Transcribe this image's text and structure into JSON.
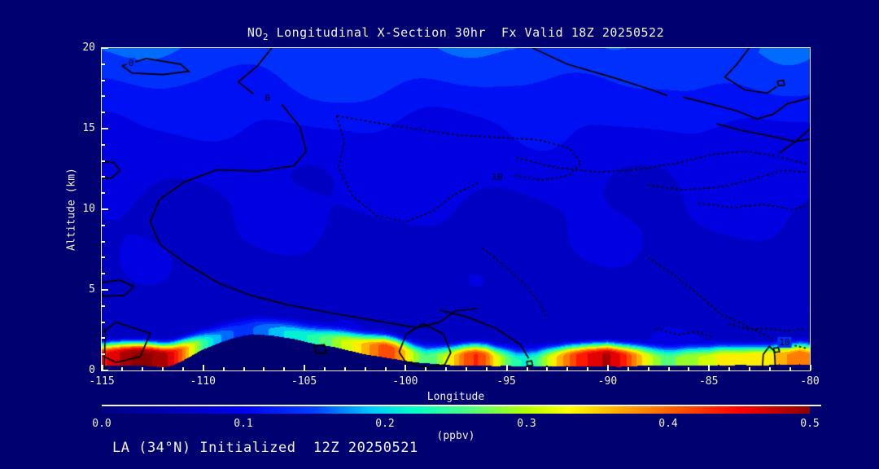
{
  "page": {
    "background": "#000070",
    "text_color": "#f2f2e2"
  },
  "title": {
    "prefix": "NO",
    "subscript": "2",
    "rest": " Longitudinal X-Section 30hr  Fx Valid 18Z 20250522"
  },
  "footer": {
    "text": "LA (34°N) Initialized  12Z 20250521"
  },
  "chart_data": {
    "type": "heatmap",
    "title": "NO2 Longitudinal X-Section 30hr Fx Valid 18Z 20250522",
    "xlabel": "Longitude",
    "ylabel": "Altitude (km)",
    "units_label": "(ppbv)",
    "xlim": [
      -115,
      -80
    ],
    "ylim": [
      0,
      20
    ],
    "grid": false,
    "x_ticks_major": [
      -115,
      -110,
      -105,
      -100,
      -95,
      -90,
      -85,
      -80
    ],
    "x_tick_labels": [
      "-115",
      "-110",
      "-105",
      "-100",
      "-95",
      "-90",
      "-85",
      "-80"
    ],
    "x_tick_minor_step": 1,
    "y_ticks_major": [
      0,
      5,
      10,
      15,
      20
    ],
    "y_tick_labels": [
      "0",
      "5",
      "10",
      "15",
      "20"
    ],
    "y_tick_minor_step": 1,
    "colorbar": {
      "min": 0.0,
      "max": 0.5,
      "tick_values": [
        0.0,
        0.1,
        0.2,
        0.3,
        0.4,
        0.5
      ],
      "tick_labels": [
        "0.0",
        "0.1",
        "0.2",
        "0.3",
        "0.4",
        "0.5"
      ],
      "stops": [
        {
          "t": 0.0,
          "color": "#000082"
        },
        {
          "t": 0.1,
          "color": "#0000B4"
        },
        {
          "t": 0.2,
          "color": "#0000F0"
        },
        {
          "t": 0.3,
          "color": "#0040FF"
        },
        {
          "t": 0.38,
          "color": "#00C8FF"
        },
        {
          "t": 0.44,
          "color": "#00FFC8"
        },
        {
          "t": 0.52,
          "color": "#50FF80"
        },
        {
          "t": 0.6,
          "color": "#B4FF00"
        },
        {
          "t": 0.66,
          "color": "#FFFF00"
        },
        {
          "t": 0.74,
          "color": "#FFA000"
        },
        {
          "t": 0.82,
          "color": "#FF5000"
        },
        {
          "t": 0.9,
          "color": "#FF0000"
        },
        {
          "t": 1.0,
          "color": "#8C0000"
        }
      ]
    },
    "field": {
      "lon_start": -115,
      "lon_step": 0.5,
      "surface_ppbv": [
        0.44,
        0.46,
        0.48,
        0.5,
        0.5,
        0.5,
        0.49,
        0.46,
        0.4,
        0.32,
        0.25,
        0.2,
        0.17,
        0.15,
        0.14,
        0.15,
        0.17,
        0.18,
        0.2,
        0.21,
        0.22,
        0.24,
        0.26,
        0.28,
        0.31,
        0.33,
        0.36,
        0.39,
        0.42,
        0.4,
        0.35,
        0.29,
        0.25,
        0.27,
        0.31,
        0.36,
        0.41,
        0.43,
        0.4,
        0.33,
        0.27,
        0.23,
        0.22,
        0.25,
        0.3,
        0.35,
        0.39,
        0.43,
        0.45,
        0.47,
        0.48,
        0.46,
        0.42,
        0.37,
        0.32,
        0.28,
        0.26,
        0.28,
        0.3,
        0.3,
        0.31,
        0.33,
        0.34,
        0.33,
        0.34,
        0.35,
        0.34,
        0.36,
        0.38,
        0.4,
        0.38
      ],
      "terrain_km": [
        0.3,
        0.32,
        0.32,
        0.3,
        0.3,
        0.25,
        0.2,
        0.3,
        0.6,
        0.95,
        1.3,
        1.55,
        1.8,
        2.0,
        2.15,
        2.25,
        2.2,
        2.15,
        2.05,
        1.95,
        1.8,
        1.65,
        1.55,
        1.45,
        1.3,
        1.15,
        1.0,
        0.9,
        0.8,
        0.7,
        0.6,
        0.5,
        0.45,
        0.4,
        0.35,
        0.3,
        0.3,
        0.28,
        0.3,
        0.26,
        0.3,
        0.25,
        0.28,
        0.24,
        0.28,
        0.25,
        0.28,
        0.24,
        0.26,
        0.24,
        0.26,
        0.22,
        0.24,
        0.28,
        0.3,
        0.32,
        0.3,
        0.28,
        0.3,
        0.32,
        0.3,
        0.33,
        0.3,
        0.35,
        0.32,
        0.3,
        0.33,
        0.38,
        0.35,
        0.38,
        0.35
      ],
      "alt_levels_km": [
        0,
        1,
        2,
        3,
        4,
        5,
        6,
        7,
        8,
        9,
        10,
        11,
        12,
        13,
        14,
        15,
        16,
        17,
        18,
        19,
        20
      ],
      "background_ppbv": [
        0.07,
        0.07,
        0.068,
        0.066,
        0.065,
        0.065,
        0.067,
        0.069,
        0.071,
        0.073,
        0.075,
        0.078,
        0.081,
        0.085,
        0.09,
        0.098,
        0.108,
        0.118,
        0.128,
        0.138,
        0.148
      ],
      "mixing": {
        "base_km": 0.35,
        "gain": 1.6,
        "threshold_ppbv": 0.22,
        "rim_km": 1.1
      },
      "band_interval_ppbv": 0.025,
      "terrain_color": "#000070"
    },
    "contours": {
      "solid": [
        [
          [
            -114,
            18.9
          ],
          [
            -112.8,
            19.35
          ],
          [
            -111.1,
            19.0
          ],
          [
            -110.7,
            18.55
          ],
          [
            -112,
            18.35
          ],
          [
            -113.5,
            18.45
          ],
          [
            -114,
            18.9
          ]
        ],
        [
          [
            -106.6,
            20
          ],
          [
            -107.3,
            18.9
          ],
          [
            -108.25,
            17.9
          ],
          [
            -107.5,
            17.15
          ]
        ],
        [
          [
            -106.1,
            16.5
          ],
          [
            -105.2,
            15.1
          ],
          [
            -104.9,
            13.6
          ],
          [
            -105.5,
            12.7
          ],
          [
            -107.3,
            12.35
          ],
          [
            -109.3,
            12.45
          ],
          [
            -110.9,
            11.7
          ],
          [
            -112.15,
            10.6
          ],
          [
            -112.6,
            9.2
          ],
          [
            -112.1,
            7.8
          ],
          [
            -110.8,
            6.6
          ],
          [
            -109.2,
            5.4
          ],
          [
            -107.6,
            4.65
          ],
          [
            -105.9,
            4.1
          ],
          [
            -103.8,
            3.6
          ],
          [
            -101.5,
            3.1
          ],
          [
            -99.4,
            2.65
          ],
          [
            -98.3,
            3.0
          ],
          [
            -97.5,
            3.7
          ],
          [
            -96.4,
            3.85
          ]
        ],
        [
          [
            -115,
            12.95
          ],
          [
            -114.4,
            12.9
          ],
          [
            -114.1,
            12.4
          ],
          [
            -114.5,
            11.95
          ],
          [
            -115,
            11.9
          ]
        ],
        [
          [
            -115,
            5.45
          ],
          [
            -114.1,
            5.6
          ],
          [
            -113.4,
            5.2
          ],
          [
            -113.9,
            4.65
          ],
          [
            -114.9,
            4.6
          ],
          [
            -115.2,
            5.0
          ]
        ],
        [
          [
            -114.9,
            2.4
          ],
          [
            -114.3,
            3.0
          ],
          [
            -112.6,
            2.3
          ],
          [
            -113.1,
            0.85
          ],
          [
            -114.3,
            0.5
          ],
          [
            -114.95,
            0.9
          ]
        ],
        [
          [
            -114.82,
            2.6
          ],
          [
            -114.88,
            0.05
          ]
        ],
        [
          [
            -100.3,
            1.15
          ],
          [
            -99.95,
            2.25
          ],
          [
            -99.1,
            2.9
          ],
          [
            -98.1,
            2.25
          ],
          [
            -97.75,
            1.1
          ],
          [
            -98.05,
            0.35
          ],
          [
            -99.0,
            0.18
          ],
          [
            -100.0,
            0.55
          ],
          [
            -100.3,
            1.15
          ]
        ],
        [
          [
            -98.3,
            3.75
          ],
          [
            -96.9,
            3.3
          ],
          [
            -95.5,
            2.6
          ],
          [
            -94.3,
            1.6
          ],
          [
            -93.9,
            0.75
          ]
        ],
        [
          [
            -94.0,
            0.55
          ],
          [
            -93.75,
            0.6
          ],
          [
            -93.7,
            0.32
          ],
          [
            -93.95,
            0.28
          ],
          [
            -94.0,
            0.55
          ]
        ],
        [
          [
            -104.5,
            1.55
          ],
          [
            -104.0,
            1.6
          ],
          [
            -103.9,
            1.1
          ],
          [
            -104.4,
            1.05
          ],
          [
            -104.5,
            1.55
          ]
        ],
        [
          [
            -82.35,
            0.05
          ],
          [
            -82.3,
            1.0
          ],
          [
            -82.0,
            1.5
          ],
          [
            -81.75,
            1.2
          ],
          [
            -81.7,
            0.05
          ]
        ],
        [
          [
            -81.8,
            1.38
          ],
          [
            -81.55,
            1.42
          ],
          [
            -81.5,
            1.16
          ],
          [
            -81.75,
            1.12
          ],
          [
            -81.8,
            1.38
          ]
        ],
        [
          [
            -83.0,
            20
          ],
          [
            -83.6,
            19.0
          ],
          [
            -84.2,
            18.2
          ],
          [
            -83.2,
            17.4
          ],
          [
            -82.1,
            17.2
          ],
          [
            -81.65,
            17.6
          ]
        ],
        [
          [
            -81.6,
            17.95
          ],
          [
            -81.3,
            18.0
          ],
          [
            -81.25,
            17.7
          ],
          [
            -81.55,
            17.66
          ],
          [
            -81.6,
            17.95
          ]
        ],
        [
          [
            -93.7,
            20
          ],
          [
            -92.0,
            19.0
          ],
          [
            -89.8,
            18.2
          ],
          [
            -87.8,
            17.4
          ],
          [
            -87.05,
            17.05
          ]
        ],
        [
          [
            -86.25,
            16.95
          ],
          [
            -84.8,
            16.5
          ],
          [
            -83.6,
            16.1
          ],
          [
            -82.6,
            15.6
          ],
          [
            -81.8,
            15.9
          ],
          [
            -81.1,
            16.55
          ],
          [
            -80.0,
            16.9
          ]
        ],
        [
          [
            -84.6,
            15.3
          ],
          [
            -83.4,
            14.9
          ],
          [
            -82.0,
            14.55
          ],
          [
            -80.7,
            14.2
          ],
          [
            -80.0,
            14.35
          ]
        ],
        [
          [
            -81.5,
            13.5
          ],
          [
            -80.7,
            14.2
          ],
          [
            -80.0,
            15.0
          ]
        ]
      ],
      "dotted": [
        [
          [
            -103.4,
            15.8
          ],
          [
            -103.0,
            14.2
          ],
          [
            -103.3,
            12.6
          ],
          [
            -102.6,
            10.8
          ],
          [
            -101.4,
            9.6
          ],
          [
            -100.0,
            9.2
          ],
          [
            -98.6,
            9.9
          ],
          [
            -97.6,
            10.9
          ],
          [
            -96.3,
            11.7
          ]
        ],
        [
          [
            -94.6,
            12.1
          ],
          [
            -93.2,
            11.8
          ],
          [
            -91.9,
            12.1
          ],
          [
            -91.3,
            12.9
          ],
          [
            -91.9,
            13.8
          ],
          [
            -93.4,
            14.3
          ],
          [
            -95.3,
            14.45
          ],
          [
            -97.4,
            14.6
          ],
          [
            -99.6,
            15.0
          ],
          [
            -101.6,
            15.4
          ],
          [
            -103.4,
            15.8
          ]
        ],
        [
          [
            -94.5,
            13.2
          ],
          [
            -92.6,
            12.6
          ],
          [
            -90.4,
            12.3
          ],
          [
            -88.3,
            12.5
          ],
          [
            -86.4,
            12.9
          ],
          [
            -84.8,
            13.4
          ],
          [
            -83.2,
            13.6
          ],
          [
            -81.7,
            13.3
          ],
          [
            -80.1,
            12.8
          ]
        ],
        [
          [
            -88.0,
            11.5
          ],
          [
            -86.2,
            11.2
          ],
          [
            -84.3,
            11.4
          ],
          [
            -82.7,
            11.9
          ],
          [
            -81.4,
            12.4
          ],
          [
            -80.1,
            12.3
          ]
        ],
        [
          [
            -85.5,
            10.4
          ],
          [
            -83.9,
            10.1
          ],
          [
            -82.3,
            10.3
          ],
          [
            -80.9,
            10.0
          ],
          [
            -80.1,
            10.2
          ]
        ],
        [
          [
            -88.0,
            7.0
          ],
          [
            -86.6,
            5.8
          ],
          [
            -85.4,
            4.6
          ],
          [
            -84.4,
            3.5
          ],
          [
            -83.2,
            2.8
          ],
          [
            -82.2,
            2.2
          ],
          [
            -81.85,
            1.95
          ]
        ],
        [
          [
            -80.75,
            1.55
          ],
          [
            -80.1,
            1.35
          ]
        ],
        [
          [
            -96.2,
            7.6
          ],
          [
            -95.0,
            6.4
          ],
          [
            -94.0,
            5.2
          ],
          [
            -93.3,
            4.1
          ],
          [
            -93.0,
            3.2
          ]
        ],
        [
          [
            -87.6,
            2.6
          ],
          [
            -86.5,
            2.2
          ],
          [
            -85.6,
            2.4
          ],
          [
            -84.9,
            2.1
          ]
        ],
        [
          [
            -84.0,
            2.9
          ],
          [
            -83.0,
            2.55
          ],
          [
            -82.1,
            2.6
          ],
          [
            -81.2,
            2.45
          ],
          [
            -80.3,
            2.55
          ]
        ]
      ],
      "labels": [
        {
          "text": "0",
          "lon": -113.55,
          "alt": 19.05
        },
        {
          "text": "0",
          "lon": -106.8,
          "alt": 16.85
        },
        {
          "text": "10",
          "lon": -95.45,
          "alt": 11.95
        },
        {
          "text": "10",
          "lon": -81.25,
          "alt": 1.72
        }
      ],
      "line_color": "#000000"
    }
  }
}
